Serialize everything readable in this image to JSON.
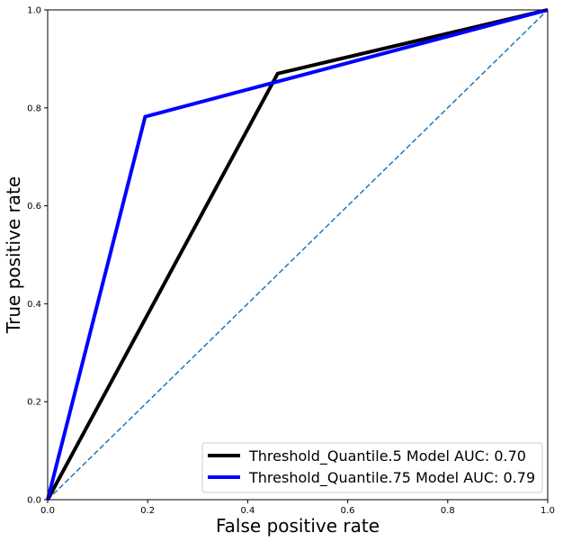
{
  "chart_data": {
    "type": "line",
    "title": "",
    "xlabel": "False positive rate",
    "ylabel": "True positive rate",
    "xlim": [
      0,
      1
    ],
    "ylim": [
      0,
      1
    ],
    "x_ticks": [
      "0.0",
      "0.2",
      "0.4",
      "0.6",
      "0.8",
      "1.0"
    ],
    "y_ticks": [
      "0.0",
      "0.2",
      "0.4",
      "0.6",
      "0.8",
      "1.0"
    ],
    "grid": false,
    "legend_position": "lower-right",
    "series": [
      {
        "name": "Threshold_Quantile.5 Model AUC: 0.70",
        "color": "#000000",
        "points": [
          [
            0,
            0
          ],
          [
            0.46,
            0.87
          ],
          [
            1,
            1
          ]
        ]
      },
      {
        "name": "Threshold_Quantile.75 Model AUC: 0.79",
        "color": "#0000ff",
        "points": [
          [
            0,
            0
          ],
          [
            0.195,
            0.782
          ],
          [
            1,
            1
          ]
        ]
      }
    ],
    "reference_line": {
      "color": "#1f77b4",
      "style": "dashed",
      "points": [
        [
          0,
          0
        ],
        [
          1,
          1
        ]
      ]
    }
  }
}
